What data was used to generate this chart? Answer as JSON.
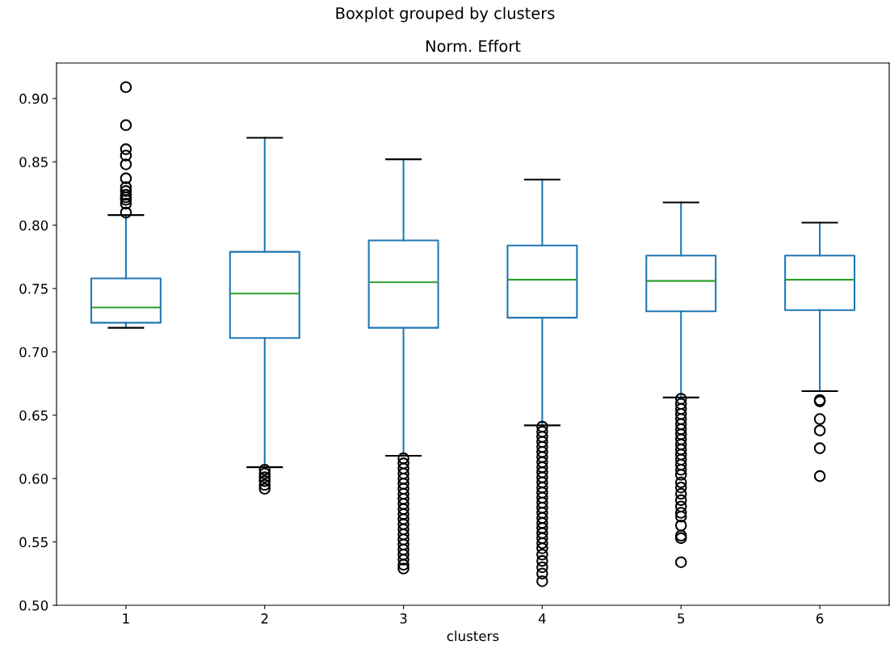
{
  "chart_data": {
    "type": "box",
    "title": "Boxplot grouped by clusters",
    "subtitle": "Norm. Effort",
    "xlabel": "clusters",
    "categories": [
      "1",
      "2",
      "3",
      "4",
      "5",
      "6"
    ],
    "ylim": [
      0.5,
      0.928
    ],
    "yticks": [
      {
        "value": 0.5,
        "label": "0.50"
      },
      {
        "value": 0.55,
        "label": "0.55"
      },
      {
        "value": 0.6,
        "label": "0.60"
      },
      {
        "value": 0.65,
        "label": "0.65"
      },
      {
        "value": 0.7,
        "label": "0.70"
      },
      {
        "value": 0.75,
        "label": "0.75"
      },
      {
        "value": 0.8,
        "label": "0.80"
      },
      {
        "value": 0.85,
        "label": "0.85"
      },
      {
        "value": 0.9,
        "label": "0.90"
      }
    ],
    "grid": false,
    "legend": false,
    "series": [
      {
        "color": "#1f77b4",
        "boxes": [
          {
            "low": 0.719,
            "q1": 0.723,
            "median": 0.735,
            "q3": 0.758,
            "high": 0.808,
            "outliers": [
              0.909,
              0.879,
              0.86,
              0.855,
              0.848,
              0.837,
              0.83,
              0.827,
              0.824,
              0.822,
              0.82,
              0.817,
              0.81
            ]
          },
          {
            "low": 0.609,
            "q1": 0.711,
            "median": 0.746,
            "q3": 0.779,
            "high": 0.869,
            "outliers": [
              0.607,
              0.604,
              0.601,
              0.598,
              0.595,
              0.592
            ]
          },
          {
            "low": 0.618,
            "q1": 0.719,
            "median": 0.755,
            "q3": 0.788,
            "high": 0.852,
            "outliers": [
              0.616,
              0.612,
              0.608,
              0.604,
              0.6,
              0.596,
              0.592,
              0.588,
              0.584,
              0.58,
              0.576,
              0.572,
              0.568,
              0.564,
              0.56,
              0.556,
              0.552,
              0.548,
              0.544,
              0.54,
              0.536,
              0.532,
              0.529
            ]
          },
          {
            "low": 0.642,
            "q1": 0.727,
            "median": 0.757,
            "q3": 0.784,
            "high": 0.836,
            "outliers": [
              0.641,
              0.637,
              0.633,
              0.629,
              0.625,
              0.621,
              0.617,
              0.613,
              0.609,
              0.605,
              0.601,
              0.597,
              0.593,
              0.589,
              0.585,
              0.581,
              0.577,
              0.573,
              0.569,
              0.565,
              0.561,
              0.557,
              0.553,
              0.549,
              0.545,
              0.54,
              0.535,
              0.53,
              0.525,
              0.519
            ]
          },
          {
            "low": 0.664,
            "q1": 0.732,
            "median": 0.756,
            "q3": 0.776,
            "high": 0.818,
            "outliers": [
              0.663,
              0.659,
              0.655,
              0.651,
              0.647,
              0.643,
              0.639,
              0.635,
              0.631,
              0.627,
              0.623,
              0.619,
              0.615,
              0.611,
              0.607,
              0.603,
              0.597,
              0.593,
              0.588,
              0.583,
              0.578,
              0.573,
              0.57,
              0.563,
              0.555,
              0.553,
              0.534
            ]
          },
          {
            "low": 0.669,
            "q1": 0.733,
            "median": 0.757,
            "q3": 0.776,
            "high": 0.802,
            "outliers": [
              0.662,
              0.661,
              0.647,
              0.638,
              0.624,
              0.602
            ]
          }
        ]
      }
    ]
  }
}
